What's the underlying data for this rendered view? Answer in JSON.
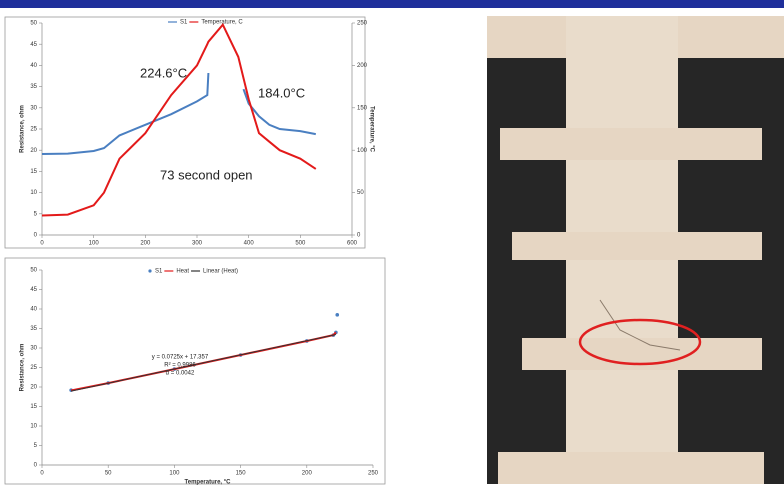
{
  "chart_data": [
    {
      "type": "line",
      "x": [
        0,
        50,
        100,
        120,
        150,
        200,
        250,
        300,
        320,
        322,
        350,
        380,
        390,
        400,
        420,
        440,
        460,
        500,
        530
      ],
      "series": [
        {
          "name": "S1",
          "color": "#4a7fc1",
          "values": [
            19.1,
            19.2,
            19.8,
            20.5,
            23.5,
            26,
            28.5,
            31.5,
            33,
            38.2,
            null,
            null,
            34.4,
            31,
            28,
            26,
            25,
            24.5,
            23.8
          ]
        },
        {
          "name": "Temperature, C",
          "color": "#e31a1a",
          "axis": "y2",
          "values": [
            23,
            24,
            35,
            50,
            90,
            120,
            165,
            200,
            225,
            228,
            248,
            210,
            185,
            160,
            120,
            110,
            100,
            90,
            78
          ]
        }
      ],
      "xlim": [
        0,
        600
      ],
      "xticks": [
        0,
        100,
        200,
        300,
        400,
        500,
        600
      ],
      "ylim": [
        0,
        50
      ],
      "yticks": [
        0,
        5,
        10,
        15,
        20,
        25,
        30,
        35,
        40,
        45,
        50
      ],
      "y2lim": [
        0,
        250
      ],
      "y2ticks": [
        0,
        50,
        100,
        150,
        200,
        250
      ],
      "ylabel": "Resistance, ohm",
      "y2label": "Temperature, °C",
      "annotations": [
        "224.6°C",
        "184.0°C",
        "73 second open"
      ]
    },
    {
      "type": "line",
      "x": [
        22,
        50,
        100,
        150,
        200,
        220,
        222,
        223
      ],
      "series": [
        {
          "name": "S1",
          "color": "#4a7fc1",
          "style": "markers",
          "values": [
            19.2,
            21,
            24.6,
            28.2,
            31.8,
            33.3,
            34,
            38.5
          ]
        },
        {
          "name": "Heat",
          "color": "#e31a1a",
          "values": [
            19.1,
            21,
            24.6,
            28.2,
            31.8,
            33.3,
            34,
            null
          ]
        },
        {
          "name": "Linear (Heat)",
          "color": "#333333",
          "values": [
            18.95,
            20.98,
            24.61,
            28.23,
            31.86,
            33.3,
            33.45,
            null
          ]
        }
      ],
      "xlim": [
        0,
        250
      ],
      "xticks": [
        0,
        50,
        100,
        150,
        200,
        250
      ],
      "ylim": [
        0,
        50
      ],
      "yticks": [
        0,
        5,
        10,
        15,
        20,
        25,
        30,
        35,
        40,
        45,
        50
      ],
      "xlabel": "Temperature, °C",
      "ylabel": "Resistance, ohm",
      "annotations": [
        "y = 0.0725x + 17.357",
        "R² = 0.9986",
        "α = 0.0042"
      ]
    }
  ]
}
